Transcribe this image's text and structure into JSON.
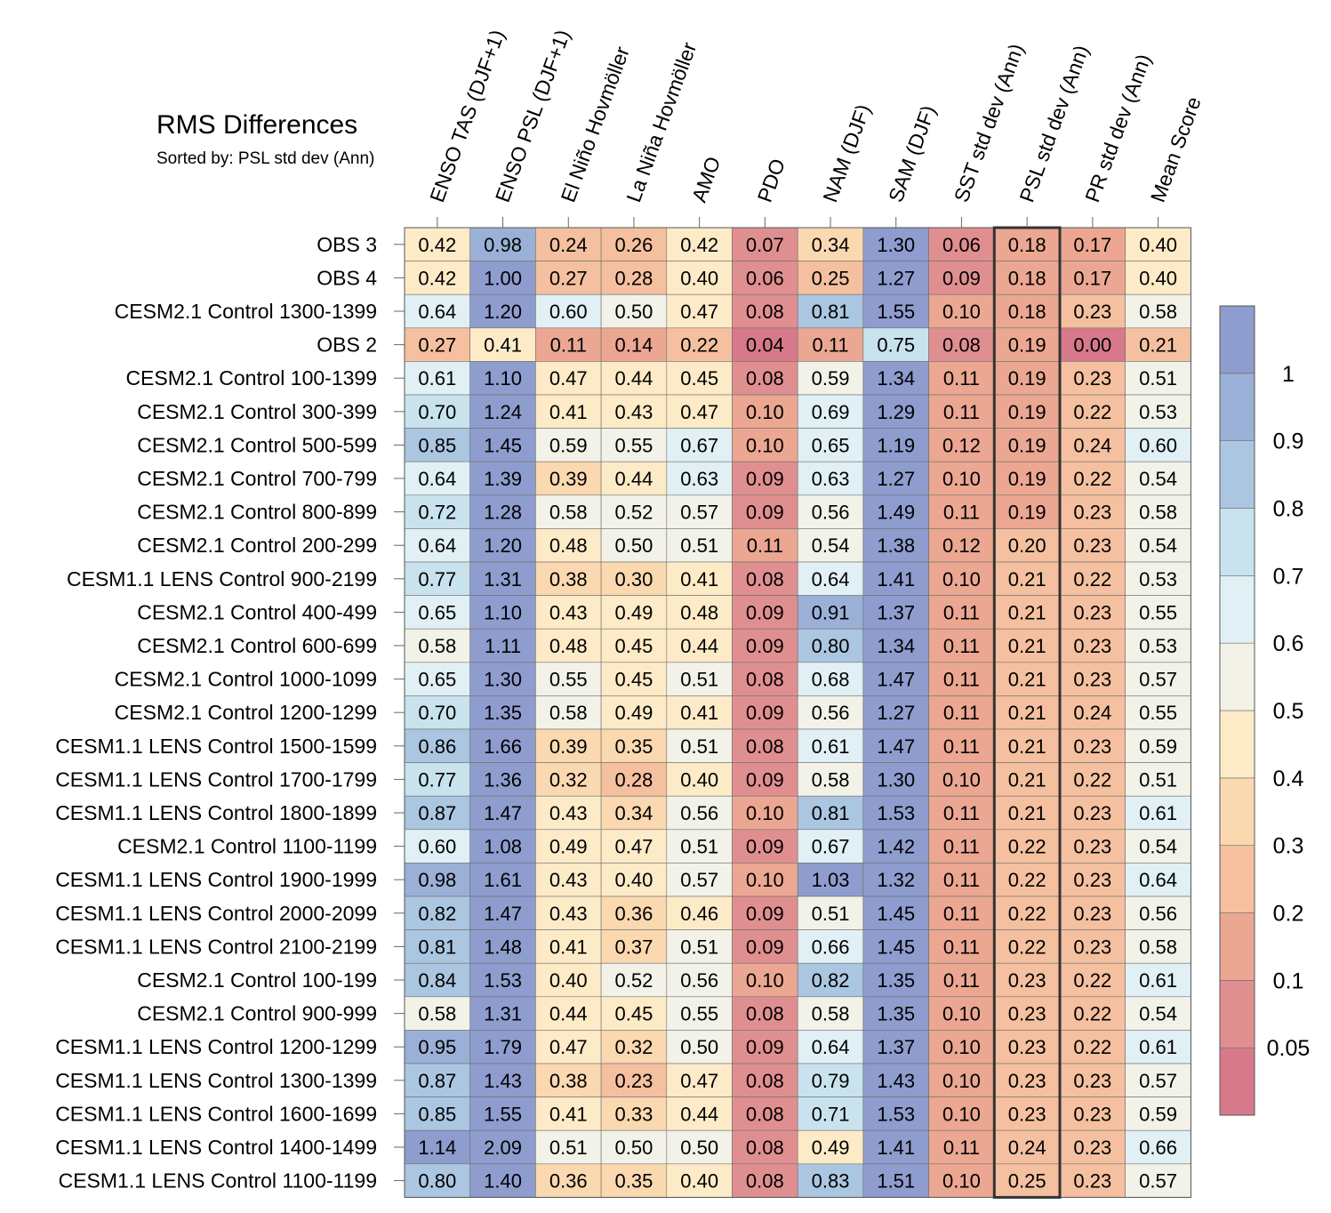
{
  "chart_data": {
    "type": "heatmap",
    "title": "RMS Differences",
    "subtitle": "Sorted by: PSL std dev (Ann)",
    "sorted_column": "PSL std dev (Ann)",
    "columns": [
      "ENSO TAS (DJF+1)",
      "ENSO PSL (DJF+1)",
      "El Niño Hovmöller",
      "La Niña Hovmöller",
      "AMO",
      "PDO",
      "NAM (DJF)",
      "SAM (DJF)",
      "SST std dev (Ann)",
      "PSL std dev (Ann)",
      "PR std dev (Ann)",
      "Mean Score"
    ],
    "rows": [
      {
        "label": "OBS 3",
        "values": [
          0.42,
          0.98,
          0.24,
          0.26,
          0.42,
          0.07,
          0.34,
          1.3,
          0.06,
          0.18,
          0.17,
          0.4
        ]
      },
      {
        "label": "OBS 4",
        "values": [
          0.42,
          1.0,
          0.27,
          0.28,
          0.4,
          0.06,
          0.25,
          1.27,
          0.09,
          0.18,
          0.17,
          0.4
        ]
      },
      {
        "label": "CESM2.1 Control 1300-1399",
        "values": [
          0.64,
          1.2,
          0.6,
          0.5,
          0.47,
          0.08,
          0.81,
          1.55,
          0.1,
          0.18,
          0.23,
          0.58
        ]
      },
      {
        "label": "OBS 2",
        "values": [
          0.27,
          0.41,
          0.11,
          0.14,
          0.22,
          0.04,
          0.11,
          0.75,
          0.08,
          0.19,
          0.0,
          0.21
        ]
      },
      {
        "label": "CESM2.1 Control 100-1399",
        "values": [
          0.61,
          1.1,
          0.47,
          0.44,
          0.45,
          0.08,
          0.59,
          1.34,
          0.11,
          0.19,
          0.23,
          0.51
        ]
      },
      {
        "label": "CESM2.1 Control 300-399",
        "values": [
          0.7,
          1.24,
          0.41,
          0.43,
          0.47,
          0.1,
          0.69,
          1.29,
          0.11,
          0.19,
          0.22,
          0.53
        ]
      },
      {
        "label": "CESM2.1 Control 500-599",
        "values": [
          0.85,
          1.45,
          0.59,
          0.55,
          0.67,
          0.1,
          0.65,
          1.19,
          0.12,
          0.19,
          0.24,
          0.6
        ]
      },
      {
        "label": "CESM2.1 Control 700-799",
        "values": [
          0.64,
          1.39,
          0.39,
          0.44,
          0.63,
          0.09,
          0.63,
          1.27,
          0.1,
          0.19,
          0.22,
          0.54
        ]
      },
      {
        "label": "CESM2.1 Control 800-899",
        "values": [
          0.72,
          1.28,
          0.58,
          0.52,
          0.57,
          0.09,
          0.56,
          1.49,
          0.11,
          0.19,
          0.23,
          0.58
        ]
      },
      {
        "label": "CESM2.1 Control 200-299",
        "values": [
          0.64,
          1.2,
          0.48,
          0.5,
          0.51,
          0.11,
          0.54,
          1.38,
          0.12,
          0.2,
          0.23,
          0.54
        ]
      },
      {
        "label": "CESM1.1 LENS Control 900-2199",
        "values": [
          0.77,
          1.31,
          0.38,
          0.3,
          0.41,
          0.08,
          0.64,
          1.41,
          0.1,
          0.21,
          0.22,
          0.53
        ]
      },
      {
        "label": "CESM2.1 Control 400-499",
        "values": [
          0.65,
          1.1,
          0.43,
          0.49,
          0.48,
          0.09,
          0.91,
          1.37,
          0.11,
          0.21,
          0.23,
          0.55
        ]
      },
      {
        "label": "CESM2.1 Control 600-699",
        "values": [
          0.58,
          1.11,
          0.48,
          0.45,
          0.44,
          0.09,
          0.8,
          1.34,
          0.11,
          0.21,
          0.23,
          0.53
        ]
      },
      {
        "label": "CESM2.1 Control 1000-1099",
        "values": [
          0.65,
          1.3,
          0.55,
          0.45,
          0.51,
          0.08,
          0.68,
          1.47,
          0.11,
          0.21,
          0.23,
          0.57
        ]
      },
      {
        "label": "CESM2.1 Control 1200-1299",
        "values": [
          0.7,
          1.35,
          0.58,
          0.49,
          0.41,
          0.09,
          0.56,
          1.27,
          0.11,
          0.21,
          0.24,
          0.55
        ]
      },
      {
        "label": "CESM1.1 LENS Control 1500-1599",
        "values": [
          0.86,
          1.66,
          0.39,
          0.35,
          0.51,
          0.08,
          0.61,
          1.47,
          0.11,
          0.21,
          0.23,
          0.59
        ]
      },
      {
        "label": "CESM1.1 LENS Control 1700-1799",
        "values": [
          0.77,
          1.36,
          0.32,
          0.28,
          0.4,
          0.09,
          0.58,
          1.3,
          0.1,
          0.21,
          0.22,
          0.51
        ]
      },
      {
        "label": "CESM1.1 LENS Control 1800-1899",
        "values": [
          0.87,
          1.47,
          0.43,
          0.34,
          0.56,
          0.1,
          0.81,
          1.53,
          0.11,
          0.21,
          0.23,
          0.61
        ]
      },
      {
        "label": "CESM2.1 Control 1100-1199",
        "values": [
          0.6,
          1.08,
          0.49,
          0.47,
          0.51,
          0.09,
          0.67,
          1.42,
          0.11,
          0.22,
          0.23,
          0.54
        ]
      },
      {
        "label": "CESM1.1 LENS Control 1900-1999",
        "values": [
          0.98,
          1.61,
          0.43,
          0.4,
          0.57,
          0.1,
          1.03,
          1.32,
          0.11,
          0.22,
          0.23,
          0.64
        ]
      },
      {
        "label": "CESM1.1 LENS Control 2000-2099",
        "values": [
          0.82,
          1.47,
          0.43,
          0.36,
          0.46,
          0.09,
          0.51,
          1.45,
          0.11,
          0.22,
          0.23,
          0.56
        ]
      },
      {
        "label": "CESM1.1 LENS Control 2100-2199",
        "values": [
          0.81,
          1.48,
          0.41,
          0.37,
          0.51,
          0.09,
          0.66,
          1.45,
          0.11,
          0.22,
          0.23,
          0.58
        ]
      },
      {
        "label": "CESM2.1 Control 100-199",
        "values": [
          0.84,
          1.53,
          0.4,
          0.52,
          0.56,
          0.1,
          0.82,
          1.35,
          0.11,
          0.23,
          0.22,
          0.61
        ]
      },
      {
        "label": "CESM2.1 Control 900-999",
        "values": [
          0.58,
          1.31,
          0.44,
          0.45,
          0.55,
          0.08,
          0.58,
          1.35,
          0.1,
          0.23,
          0.22,
          0.54
        ]
      },
      {
        "label": "CESM1.1 LENS Control 1200-1299",
        "values": [
          0.95,
          1.79,
          0.47,
          0.32,
          0.5,
          0.09,
          0.64,
          1.37,
          0.1,
          0.23,
          0.22,
          0.61
        ]
      },
      {
        "label": "CESM1.1 LENS Control 1300-1399",
        "values": [
          0.87,
          1.43,
          0.38,
          0.23,
          0.47,
          0.08,
          0.79,
          1.43,
          0.1,
          0.23,
          0.23,
          0.57
        ]
      },
      {
        "label": "CESM1.1 LENS Control 1600-1699",
        "values": [
          0.85,
          1.55,
          0.41,
          0.33,
          0.44,
          0.08,
          0.71,
          1.53,
          0.1,
          0.23,
          0.23,
          0.59
        ]
      },
      {
        "label": "CESM1.1 LENS Control 1400-1499",
        "values": [
          1.14,
          2.09,
          0.51,
          0.5,
          0.5,
          0.08,
          0.49,
          1.41,
          0.11,
          0.24,
          0.23,
          0.66
        ]
      },
      {
        "label": "CESM1.1 LENS Control 1100-1199",
        "values": [
          0.8,
          1.4,
          0.36,
          0.35,
          0.4,
          0.08,
          0.83,
          1.51,
          0.1,
          0.25,
          0.23,
          0.57
        ]
      }
    ],
    "colorbar": {
      "levels": [
        0.05,
        0.1,
        0.2,
        0.3,
        0.4,
        0.5,
        0.6,
        0.7,
        0.8,
        0.9,
        1
      ],
      "labels": [
        "1",
        "0.9",
        "0.8",
        "0.7",
        "0.6",
        "0.5",
        "0.4",
        "0.3",
        "0.2",
        "0.1",
        "0.05"
      ],
      "colors_low_to_high": [
        "#d7798b",
        "#e08f90",
        "#eba792",
        "#f4c09f",
        "#fad8b0",
        "#fdebc7",
        "#f2f2e8",
        "#e0f0f4",
        "#c9e3ee",
        "#abc6e0",
        "#9bb0d6",
        "#8e9cce"
      ]
    }
  }
}
